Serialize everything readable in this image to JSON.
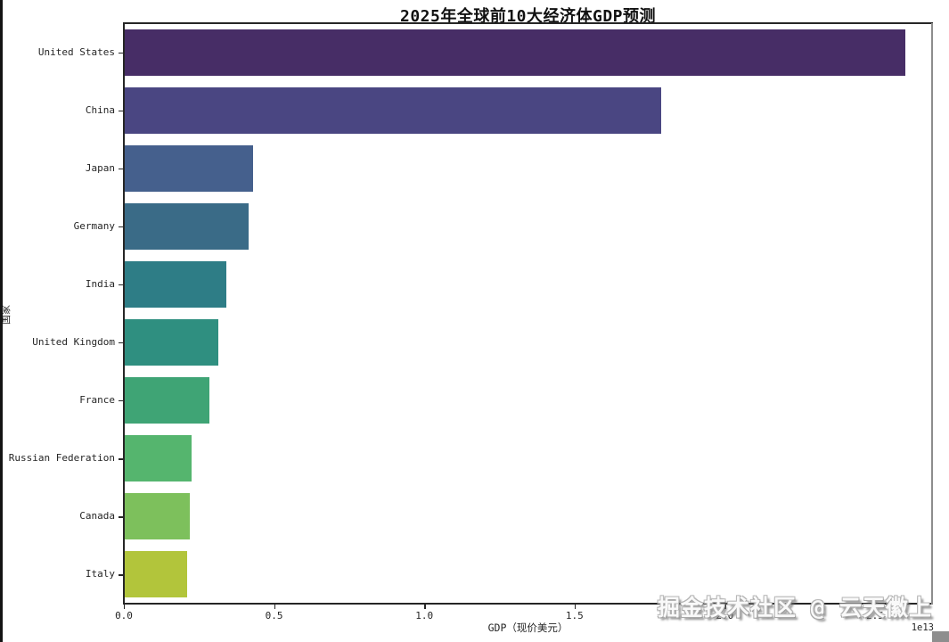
{
  "figure": {
    "title": "2025年全球前10大经济体GDP预测",
    "xlabel": "GDP（现价美元）",
    "ylabel": "国家",
    "offset_text": "1e13",
    "watermark": "掘金技术社区 @ 云天徽上",
    "background_color": "#ffffff"
  },
  "chart_data": {
    "type": "bar",
    "orientation": "horizontal",
    "title": "2025年全球前10大经济体GDP预测",
    "xlabel": "GDP（现价美元）",
    "ylabel": "国家",
    "unit": "1e13 现价美元 (USD)",
    "categories": [
      "United States",
      "China",
      "Japan",
      "Germany",
      "India",
      "United Kingdom",
      "France",
      "Russian Federation",
      "Canada",
      "Italy"
    ],
    "values": [
      2.597,
      1.785,
      0.427,
      0.412,
      0.338,
      0.311,
      0.282,
      0.222,
      0.216,
      0.208
    ],
    "bar_colors": [
      "#472d66",
      "#4a4682",
      "#45608d",
      "#3a6b87",
      "#2e7d86",
      "#2f8f80",
      "#3fa475",
      "#55b56e",
      "#7dc05c",
      "#b2c53b"
    ],
    "x_tick_values": [
      0.0,
      0.5,
      1.0,
      1.5,
      2.0,
      2.5
    ],
    "x_tick_labels": [
      "0.0",
      "0.5",
      "1.0",
      "1.5",
      "2.0",
      "2.5"
    ],
    "xlim": [
      0,
      2.69
    ],
    "grid": false,
    "legend": null
  }
}
